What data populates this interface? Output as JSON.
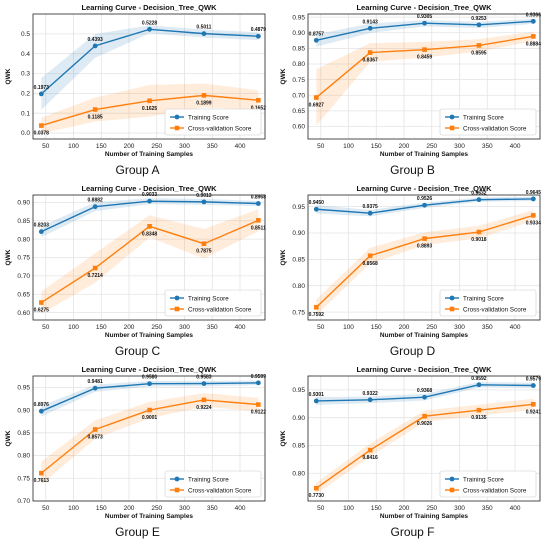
{
  "colors": {
    "training": "#1f77b4",
    "cv": "#ff7f0e",
    "grid": "#e4e4e4",
    "axis": "#222222"
  },
  "chart_data": [
    {
      "type": "line",
      "title": "Learning Curve - Decision_Tree_QWK",
      "group_label": "Group A",
      "xlabel": "Number of Training Samples",
      "ylabel": "QWK",
      "xlim": [
        27,
        445
      ],
      "ylim": [
        -0.03,
        0.6
      ],
      "xticks": [
        50,
        100,
        150,
        200,
        250,
        300,
        350,
        400
      ],
      "yticks": [
        0.0,
        0.1,
        0.2,
        0.3,
        0.4,
        0.5
      ],
      "x": [
        42,
        139,
        237,
        335,
        433
      ],
      "grid": true,
      "legend": "lower-right",
      "series": [
        {
          "name": "Training Score",
          "values": [
            0.1973,
            0.4393,
            0.5228,
            0.5011,
            0.4879
          ],
          "labels": [
            "0.1973",
            "0.4393",
            "0.5228",
            "0.5011",
            "0.4879"
          ],
          "band": [
            0.08,
            0.06,
            0.02,
            0.02,
            0.02
          ]
        },
        {
          "name": "Cross-validation Score",
          "values": [
            0.0378,
            0.1185,
            0.1625,
            0.1899,
            0.1652
          ],
          "labels": [
            "0.0378",
            "0.1185",
            "0.1625",
            "0.1899",
            "0.1652"
          ],
          "band": [
            0.04,
            0.06,
            0.08,
            0.06,
            0.05
          ]
        }
      ]
    },
    {
      "type": "line",
      "title": "Learning Curve - Decision_Tree_QWK",
      "group_label": "Group B",
      "xlabel": "Number of Training Samples",
      "ylabel": "QWK",
      "xlim": [
        27,
        445
      ],
      "ylim": [
        0.56,
        0.96
      ],
      "xticks": [
        50,
        100,
        150,
        200,
        250,
        300,
        350,
        400
      ],
      "yticks": [
        0.6,
        0.65,
        0.7,
        0.75,
        0.8,
        0.85,
        0.9,
        0.95
      ],
      "x": [
        42,
        139,
        237,
        335,
        433
      ],
      "grid": true,
      "legend": "lower-right",
      "series": [
        {
          "name": "Training Score",
          "values": [
            0.8757,
            0.9143,
            0.9305,
            0.9253,
            0.9366
          ],
          "labels": [
            "0.8757",
            "0.9143",
            "0.9305",
            "0.9253",
            "0.9366"
          ],
          "band": [
            0.02,
            0.015,
            0.01,
            0.01,
            0.008
          ]
        },
        {
          "name": "Cross-validation Score",
          "values": [
            0.6927,
            0.8367,
            0.8459,
            0.8595,
            0.8884
          ],
          "labels": [
            "0.6927",
            "0.8367",
            "0.8459",
            "0.8595",
            "0.8884"
          ],
          "band": [
            0.09,
            0.03,
            0.025,
            0.02,
            0.015
          ]
        }
      ]
    },
    {
      "type": "line",
      "title": "Learning Curve - Decision_Tree_QWK",
      "group_label": "Group C",
      "xlabel": "Number of Training Samples",
      "ylabel": "QWK",
      "xlim": [
        27,
        445
      ],
      "ylim": [
        0.58,
        0.92
      ],
      "xticks": [
        50,
        100,
        150,
        200,
        250,
        300,
        350,
        400
      ],
      "yticks": [
        0.6,
        0.65,
        0.7,
        0.75,
        0.8,
        0.85,
        0.9
      ],
      "x": [
        42,
        139,
        237,
        335,
        433
      ],
      "grid": true,
      "legend": "lower-right",
      "series": [
        {
          "name": "Training Score",
          "values": [
            0.8203,
            0.8882,
            0.9033,
            0.9013,
            0.8968
          ],
          "labels": [
            "0.8203",
            "0.8882",
            "0.9033",
            "0.9013",
            "0.8968"
          ],
          "band": [
            0.015,
            0.012,
            0.008,
            0.008,
            0.007
          ]
        },
        {
          "name": "Cross-validation Score",
          "values": [
            0.6275,
            0.7214,
            0.8348,
            0.7875,
            0.8511
          ],
          "labels": [
            "0.6275",
            "0.7214",
            "0.8348",
            "0.7875",
            "0.8511"
          ],
          "band": [
            0.03,
            0.04,
            0.03,
            0.04,
            0.03
          ]
        }
      ]
    },
    {
      "type": "line",
      "title": "Learning Curve - Decision_Tree_QWK",
      "group_label": "Group D",
      "xlabel": "Number of Training Samples",
      "ylabel": "QWK",
      "xlim": [
        27,
        445
      ],
      "ylim": [
        0.735,
        0.972
      ],
      "xticks": [
        50,
        100,
        150,
        200,
        250,
        300,
        350,
        400
      ],
      "yticks": [
        0.75,
        0.8,
        0.85,
        0.9,
        0.95
      ],
      "x": [
        42,
        139,
        237,
        335,
        433
      ],
      "grid": true,
      "legend": "lower-right",
      "series": [
        {
          "name": "Training Score",
          "values": [
            0.945,
            0.9375,
            0.9526,
            0.9632,
            0.9645
          ],
          "labels": [
            "0.9450",
            "0.9375",
            "0.9526",
            "0.9632",
            "0.9645"
          ],
          "band": [
            0.008,
            0.006,
            0.005,
            0.004,
            0.004
          ]
        },
        {
          "name": "Cross-validation Score",
          "values": [
            0.7592,
            0.8568,
            0.8893,
            0.9018,
            0.9334
          ],
          "labels": [
            "0.7592",
            "0.8568",
            "0.8893",
            "0.9018",
            "0.9334"
          ],
          "band": [
            0.015,
            0.015,
            0.012,
            0.012,
            0.01
          ]
        }
      ]
    },
    {
      "type": "line",
      "title": "Learning Curve - Decision_Tree_QWK",
      "group_label": "Group E",
      "xlabel": "Number of Training Samples",
      "ylabel": "QWK",
      "xlim": [
        27,
        445
      ],
      "ylim": [
        0.7,
        0.975
      ],
      "xticks": [
        50,
        100,
        150,
        200,
        250,
        300,
        350,
        400
      ],
      "yticks": [
        0.7,
        0.75,
        0.8,
        0.85,
        0.9,
        0.95
      ],
      "x": [
        42,
        139,
        237,
        335,
        433
      ],
      "grid": true,
      "legend": "lower-right",
      "series": [
        {
          "name": "Training Score",
          "values": [
            0.8976,
            0.9481,
            0.958,
            0.9583,
            0.9599
          ],
          "labels": [
            "0.8976",
            "0.9481",
            "0.9580",
            "0.9583",
            "0.9599"
          ],
          "band": [
            0.012,
            0.008,
            0.006,
            0.006,
            0.005
          ]
        },
        {
          "name": "Cross-validation Score",
          "values": [
            0.7613,
            0.8573,
            0.9001,
            0.9224,
            0.9122
          ],
          "labels": [
            "0.7613",
            "0.8573",
            "0.9001",
            "0.9224",
            "0.9122"
          ],
          "band": [
            0.025,
            0.02,
            0.018,
            0.015,
            0.015
          ]
        }
      ]
    },
    {
      "type": "line",
      "title": "Learning Curve - Decision_Tree_QWK",
      "group_label": "Group F",
      "xlabel": "Number of Training Samples",
      "ylabel": "QWK",
      "xlim": [
        27,
        445
      ],
      "ylim": [
        0.75,
        0.975
      ],
      "xticks": [
        50,
        100,
        150,
        200,
        250,
        300,
        350,
        400
      ],
      "yticks": [
        0.8,
        0.85,
        0.9,
        0.95
      ],
      "x": [
        42,
        139,
        237,
        335,
        433
      ],
      "grid": true,
      "legend": "lower-right",
      "series": [
        {
          "name": "Training Score",
          "values": [
            0.9301,
            0.9322,
            0.9368,
            0.9592,
            0.9579
          ],
          "labels": [
            "0.9301",
            "0.9322",
            "0.9368",
            "0.9592",
            "0.9579"
          ],
          "band": [
            0.007,
            0.006,
            0.006,
            0.005,
            0.005
          ]
        },
        {
          "name": "Cross-validation Score",
          "values": [
            0.773,
            0.8416,
            0.9026,
            0.9135,
            0.9241
          ],
          "labels": [
            "0.7730",
            "0.8416",
            "0.9026",
            "0.9135",
            "0.9241"
          ],
          "band": [
            0.01,
            0.012,
            0.01,
            0.01,
            0.01
          ]
        }
      ]
    }
  ]
}
